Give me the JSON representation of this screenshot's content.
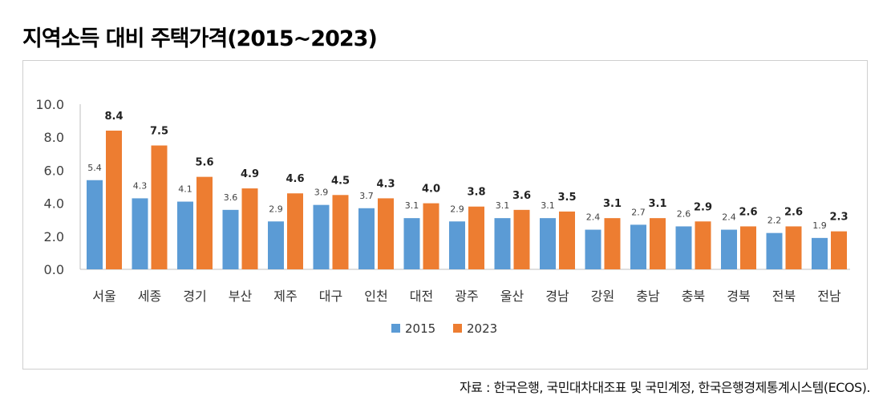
{
  "title": "지역소득 대비 주택가격(2015~2023)",
  "source": "자료 : 한국은행, 국민대차대조표 및 국민계정, 한국은행경제통계시스템(ECOS).",
  "colors": {
    "s2015": "#5b9bd5",
    "s2023": "#ed7d31",
    "axis": "#bfbfbf",
    "text": "#404040"
  },
  "chart_data": {
    "type": "bar",
    "title": "지역소득 대비 주택가격(2015~2023)",
    "xlabel": "",
    "ylabel": "",
    "ylim": [
      0,
      10
    ],
    "yticks": [
      "10.0",
      "8.0",
      "6.0",
      "4.0",
      "2.0",
      "0.0"
    ],
    "grid": false,
    "legend": "bottom-center",
    "categories": [
      "서울",
      "세종",
      "경기",
      "부산",
      "제주",
      "대구",
      "인천",
      "대전",
      "광주",
      "울산",
      "경남",
      "강원",
      "충남",
      "충북",
      "경북",
      "전북",
      "전남"
    ],
    "series": [
      {
        "name": "2015",
        "values": [
          5.4,
          4.3,
          4.1,
          3.6,
          2.9,
          3.9,
          3.7,
          3.1,
          2.9,
          3.1,
          3.1,
          2.4,
          2.7,
          2.6,
          2.4,
          2.2,
          1.9
        ],
        "labels": [
          "5.4",
          "4.3",
          "4.1",
          "3.6",
          "2.9",
          "3.9",
          "3.7",
          "3.1",
          "2.9",
          "3.1",
          "3.1",
          "2.4",
          "2.7",
          "2.6",
          "2.4",
          "2.2",
          "1.9"
        ]
      },
      {
        "name": "2023",
        "values": [
          8.4,
          7.5,
          5.6,
          4.9,
          4.6,
          4.5,
          4.3,
          4.0,
          3.8,
          3.6,
          3.5,
          3.1,
          3.1,
          2.9,
          2.6,
          2.6,
          2.3
        ],
        "labels": [
          "8.4",
          "7.5",
          "5.6",
          "4.9",
          "4.6",
          "4.5",
          "4.3",
          "4.0",
          "3.8",
          "3.6",
          "3.5",
          "3.1",
          "3.1",
          "2.9",
          "2.6",
          "2.6",
          "2.3"
        ]
      }
    ]
  }
}
